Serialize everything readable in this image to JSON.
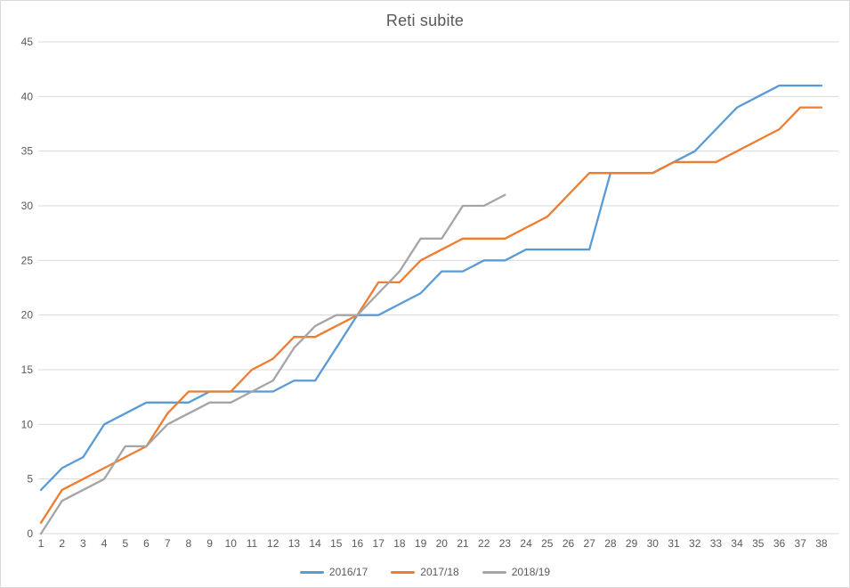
{
  "chart": {
    "title": "Reti subite"
  },
  "chart_data": {
    "type": "line",
    "title": "Reti subite",
    "xlabel": "",
    "ylabel": "",
    "x": [
      1,
      2,
      3,
      4,
      5,
      6,
      7,
      8,
      9,
      10,
      11,
      12,
      13,
      14,
      15,
      16,
      17,
      18,
      19,
      20,
      21,
      22,
      23,
      24,
      25,
      26,
      27,
      28,
      29,
      30,
      31,
      32,
      33,
      34,
      35,
      36,
      37,
      38
    ],
    "series": [
      {
        "name": "2016/17",
        "color": "#5B9BD5",
        "values": [
          4,
          6,
          7,
          10,
          11,
          12,
          12,
          12,
          13,
          13,
          13,
          13,
          14,
          14,
          17,
          20,
          20,
          21,
          22,
          24,
          24,
          25,
          25,
          26,
          26,
          26,
          26,
          33,
          33,
          33,
          34,
          35,
          37,
          39,
          40,
          41,
          41,
          41
        ]
      },
      {
        "name": "2017/18",
        "color": "#ED7D31",
        "values": [
          1,
          4,
          5,
          6,
          7,
          8,
          11,
          13,
          13,
          13,
          15,
          16,
          18,
          18,
          19,
          20,
          23,
          23,
          25,
          26,
          27,
          27,
          27,
          28,
          29,
          31,
          33,
          33,
          33,
          33,
          34,
          34,
          34,
          35,
          36,
          37,
          39,
          39
        ]
      },
      {
        "name": "2018/19",
        "color": "#A5A5A5",
        "values": [
          0,
          3,
          4,
          5,
          8,
          8,
          10,
          11,
          12,
          12,
          13,
          14,
          17,
          19,
          20,
          20,
          22,
          24,
          27,
          27,
          30,
          30,
          31
        ]
      }
    ],
    "ylim": [
      0,
      45
    ],
    "yticks": [
      0,
      5,
      10,
      15,
      20,
      25,
      30,
      35,
      40,
      45
    ],
    "grid": true,
    "legend_position": "bottom",
    "axis_text_color": "#595959",
    "gridline_color": "#d9d9d9",
    "background_color": "#ffffff",
    "border_color": "#d9d9d9"
  }
}
